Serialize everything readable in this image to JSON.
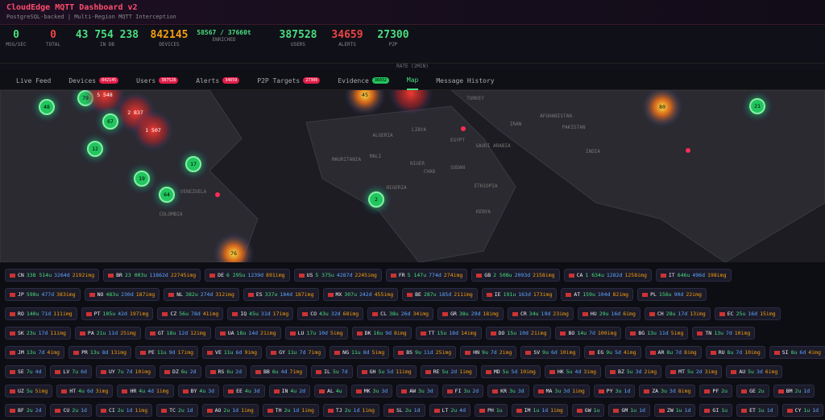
{
  "header": {
    "title": "CloudEdge MQTT Dashboard v2",
    "subtitle": "PostgreSQL-backed | Multi-Region MQTT Interception"
  },
  "stats": [
    {
      "value": "0",
      "label": "MSG/SEC"
    },
    {
      "value": "0",
      "label": "TOTAL"
    },
    {
      "value": "43 754 238",
      "label": "IN DB"
    },
    {
      "value": "842145",
      "label": "DEVICES"
    },
    {
      "value": "58567 / 37660t",
      "label": "ENRICHED"
    },
    {
      "value": "387528",
      "label": "USERS"
    },
    {
      "value": "34659",
      "label": "ALERTS"
    },
    {
      "value": "27300",
      "label": "P2P"
    }
  ],
  "rate_label": "RATE (2MIN)",
  "tabs": [
    {
      "label": "Live Feed"
    },
    {
      "label": "Devices",
      "badge": "842145"
    },
    {
      "label": "Users",
      "badge": "387528"
    },
    {
      "label": "Alerts",
      "badge": "34659"
    },
    {
      "label": "P2P Targets",
      "badge": "27300"
    },
    {
      "label": "Evidence",
      "badge": "36032"
    },
    {
      "label": "Map"
    },
    {
      "label": "Message History"
    }
  ],
  "map": {
    "clusters": [
      "48",
      "79",
      "5 548",
      "2 837",
      "67",
      "1 507",
      "12",
      "19",
      "17",
      "64",
      "45",
      "80",
      "21",
      "2",
      "76"
    ],
    "labels": [
      "AFGHANISTAN",
      "PAKISTAN",
      "INDIA",
      "SAUDI ARABIA",
      "EGYPT",
      "LIBYA",
      "ALGERIA",
      "MAURITANIA",
      "MALI",
      "NIGER",
      "CHAD",
      "SUDAN",
      "NIGERIA",
      "ETHIOPIA",
      "KENYA",
      "TURKEY",
      "IRAN",
      "VENEZUELA",
      "COLOMBIA"
    ]
  },
  "chips": [
    [
      {
        "code": "CN",
        "u": "338 514u",
        "d": "3264d",
        "img": "2192img"
      },
      {
        "code": "BR",
        "u": "23 003u",
        "d": "11862d",
        "img": "22745img"
      },
      {
        "code": "DE",
        "u": "6 295u",
        "d": "1239d",
        "img": "891img"
      },
      {
        "code": "US",
        "u": "5 375u",
        "d": "4287d",
        "img": "2245img"
      },
      {
        "code": "FR",
        "u": "5 147u",
        "d": "774d",
        "img": "274img"
      },
      {
        "code": "GB",
        "u": "2 508u",
        "d": "2093d",
        "img": "2158img"
      },
      {
        "code": "CA",
        "u": "1 634u",
        "d": "1282d",
        "img": "1258img"
      },
      {
        "code": "IT",
        "u": "646u",
        "d": "496d",
        "img": "198img"
      }
    ],
    [
      {
        "code": "JP",
        "u": "598u",
        "d": "477d",
        "img": "383img"
      },
      {
        "code": "NO",
        "u": "483u",
        "d": "230d",
        "img": "187img"
      },
      {
        "code": "NL",
        "u": "382u",
        "d": "274d",
        "img": "312img"
      },
      {
        "code": "ES",
        "u": "337u",
        "d": "184d",
        "img": "187img"
      },
      {
        "code": "MX",
        "u": "307u",
        "d": "242d",
        "img": "455img"
      },
      {
        "code": "BE",
        "u": "287u",
        "d": "185d",
        "img": "211img"
      },
      {
        "code": "IE",
        "u": "191u",
        "d": "163d",
        "img": "173img"
      },
      {
        "code": "AT",
        "u": "159u",
        "d": "104d",
        "img": "82img"
      },
      {
        "code": "PL",
        "u": "156u",
        "d": "90d",
        "img": "22img"
      }
    ],
    [
      {
        "code": "RO",
        "u": "140u",
        "d": "71d",
        "img": "111img"
      },
      {
        "code": "PT",
        "u": "105u",
        "d": "42d",
        "img": "197img"
      },
      {
        "code": "CZ",
        "u": "56u",
        "d": "78d",
        "img": "41img"
      },
      {
        "code": "IQ",
        "u": "45u",
        "d": "31d",
        "img": "17img"
      },
      {
        "code": "CO",
        "u": "43u",
        "d": "32d",
        "img": "68img"
      },
      {
        "code": "CL",
        "u": "38u",
        "d": "26d",
        "img": "34img"
      },
      {
        "code": "GR",
        "u": "38u",
        "d": "29d",
        "img": "18img"
      },
      {
        "code": "CR",
        "u": "34u",
        "d": "19d",
        "img": "23img"
      },
      {
        "code": "HU",
        "u": "29u",
        "d": "16d",
        "img": "6img"
      },
      {
        "code": "CH",
        "u": "28u",
        "d": "17d",
        "img": "13img"
      },
      {
        "code": "EC",
        "u": "25u",
        "d": "16d",
        "img": "15img"
      }
    ],
    [
      {
        "code": "SK",
        "u": "23u",
        "d": "17d",
        "img": "11img"
      },
      {
        "code": "PA",
        "u": "21u",
        "d": "11d",
        "img": "25img"
      },
      {
        "code": "GT",
        "u": "18u",
        "d": "12d",
        "img": "12img"
      },
      {
        "code": "UA",
        "u": "18u",
        "d": "14d",
        "img": "21img"
      },
      {
        "code": "LU",
        "u": "17u",
        "d": "10d",
        "img": "5img"
      },
      {
        "code": "DK",
        "u": "16u",
        "d": "9d",
        "img": "8img"
      },
      {
        "code": "TT",
        "u": "15u",
        "d": "18d",
        "img": "14img"
      },
      {
        "code": "DO",
        "u": "15u",
        "d": "10d",
        "img": "21img"
      },
      {
        "code": "BO",
        "u": "14u",
        "d": "7d",
        "img": "100img"
      },
      {
        "code": "BG",
        "u": "13u",
        "d": "11d",
        "img": "5img"
      },
      {
        "code": "TN",
        "u": "13u",
        "d": "7d",
        "img": "10img"
      }
    ],
    [
      {
        "code": "JM",
        "u": "13u",
        "d": "7d",
        "img": "4img"
      },
      {
        "code": "PR",
        "u": "13u",
        "d": "8d",
        "img": "13img"
      },
      {
        "code": "PE",
        "u": "11u",
        "d": "9d",
        "img": "17img"
      },
      {
        "code": "VE",
        "u": "11u",
        "d": "6d",
        "img": "9img"
      },
      {
        "code": "GY",
        "u": "11u",
        "d": "7d",
        "img": "7img"
      },
      {
        "code": "NG",
        "u": "11u",
        "d": "8d",
        "img": "5img"
      },
      {
        "code": "BS",
        "u": "9u",
        "d": "11d",
        "img": "25img"
      },
      {
        "code": "HN",
        "u": "9u",
        "d": "7d",
        "img": "2img"
      },
      {
        "code": "SV",
        "u": "9u",
        "d": "6d",
        "img": "10img"
      },
      {
        "code": "EG",
        "u": "9u",
        "d": "5d",
        "img": "4img"
      },
      {
        "code": "AR",
        "u": "8u",
        "d": "7d",
        "img": "8img"
      },
      {
        "code": "RU",
        "u": "8u",
        "d": "7d",
        "img": "10img"
      },
      {
        "code": "SI",
        "u": "8u",
        "d": "6d",
        "img": "4img"
      }
    ],
    [
      {
        "code": "SE",
        "u": "7u",
        "d": "4d"
      },
      {
        "code": "LV",
        "u": "7u",
        "d": "6d"
      },
      {
        "code": "UY",
        "u": "7u",
        "d": "7d",
        "img": "10img"
      },
      {
        "code": "DZ",
        "u": "6u",
        "d": "2d"
      },
      {
        "code": "RS",
        "u": "6u",
        "d": "2d"
      },
      {
        "code": "BB",
        "u": "6u",
        "d": "4d",
        "img": "7img"
      },
      {
        "code": "IL",
        "u": "5u",
        "d": "7d"
      },
      {
        "code": "GH",
        "u": "5u",
        "d": "5d",
        "img": "11img"
      },
      {
        "code": "RE",
        "u": "5u",
        "d": "2d",
        "img": "1img"
      },
      {
        "code": "MD",
        "u": "5u",
        "d": "5d",
        "img": "10img"
      },
      {
        "code": "HK",
        "u": "5u",
        "d": "4d",
        "img": "3img"
      },
      {
        "code": "BZ",
        "u": "5u",
        "d": "3d",
        "img": "2img"
      },
      {
        "code": "MT",
        "u": "5u",
        "d": "2d",
        "img": "3img"
      },
      {
        "code": "AU",
        "u": "5u",
        "d": "3d",
        "img": "6img"
      }
    ],
    [
      {
        "code": "UZ",
        "u": "5u",
        "img": "5img"
      },
      {
        "code": "HT",
        "u": "4u",
        "d": "6d",
        "img": "3img"
      },
      {
        "code": "HR",
        "u": "4u",
        "d": "4d",
        "img": "1img"
      },
      {
        "code": "BY",
        "u": "4u",
        "d": "3d"
      },
      {
        "code": "EE",
        "u": "4u",
        "d": "3d"
      },
      {
        "code": "IN",
        "u": "4u",
        "d": "2d"
      },
      {
        "code": "AL",
        "u": "4u"
      },
      {
        "code": "MK",
        "u": "3u",
        "d": "3d"
      },
      {
        "code": "AW",
        "u": "3u",
        "d": "3d"
      },
      {
        "code": "FI",
        "u": "3u",
        "d": "2d"
      },
      {
        "code": "KR",
        "u": "3u",
        "d": "3d"
      },
      {
        "code": "MA",
        "u": "3u",
        "d": "3d",
        "img": "1img"
      },
      {
        "code": "PY",
        "u": "3u",
        "d": "1d"
      },
      {
        "code": "ZA",
        "u": "3u",
        "d": "3d",
        "img": "8img"
      },
      {
        "code": "PF",
        "u": "2u"
      },
      {
        "code": "GE",
        "u": "2u"
      },
      {
        "code": "BM",
        "u": "2u",
        "d": "1d"
      }
    ],
    [
      {
        "code": "BF",
        "u": "2u",
        "d": "2d"
      },
      {
        "code": "CU",
        "u": "2u",
        "d": "1d"
      },
      {
        "code": "CI",
        "u": "2u",
        "d": "1d",
        "img": "1img"
      },
      {
        "code": "TC",
        "u": "2u",
        "d": "1d"
      },
      {
        "code": "AO",
        "u": "2u",
        "d": "1d",
        "img": "1img"
      },
      {
        "code": "TH",
        "u": "2u",
        "d": "1d",
        "img": "1img"
      },
      {
        "code": "TJ",
        "u": "2u",
        "d": "1d",
        "img": "1img"
      },
      {
        "code": "SL",
        "u": "2u",
        "d": "1d"
      },
      {
        "code": "LT",
        "u": "2u",
        "d": "4d"
      },
      {
        "code": "PH",
        "u": "1u"
      },
      {
        "code": "IM",
        "u": "1u",
        "d": "1d",
        "img": "1img"
      },
      {
        "code": "GW",
        "u": "1u"
      },
      {
        "code": "GM",
        "u": "1u",
        "d": "1d"
      },
      {
        "code": "ZW",
        "u": "1u",
        "d": "1d"
      },
      {
        "code": "GI",
        "u": "1u"
      },
      {
        "code": "ET",
        "u": "1u",
        "d": "1d"
      },
      {
        "code": "CY",
        "u": "1u",
        "d": "1d"
      }
    ]
  ]
}
